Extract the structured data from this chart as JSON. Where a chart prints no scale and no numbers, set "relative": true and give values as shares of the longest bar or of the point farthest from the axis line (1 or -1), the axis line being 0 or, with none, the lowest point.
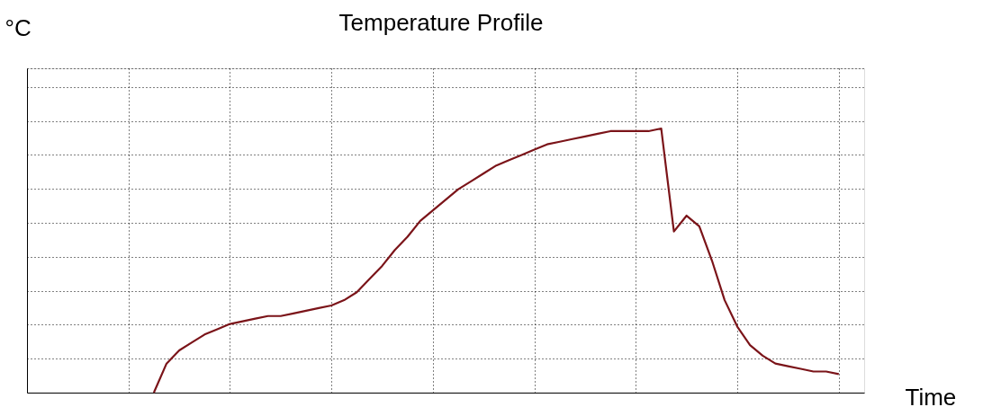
{
  "chart_data": {
    "type": "line",
    "title": "Temperature Profile",
    "xlabel": "Time",
    "ylabel": "°C",
    "relative": true,
    "grid": true,
    "legend": false,
    "marker": "none",
    "line_style": "solid",
    "categories": [
      null,
      null,
      null,
      null,
      null,
      null,
      null,
      null,
      null,
      null,
      null,
      null,
      null,
      null,
      null,
      null,
      null,
      null,
      null,
      null,
      null,
      null,
      null,
      null,
      null,
      null,
      null,
      null,
      null,
      null,
      null,
      null,
      null,
      null,
      null,
      null,
      null,
      null,
      null,
      null,
      null,
      null,
      null,
      null,
      null,
      null,
      null,
      null,
      null,
      null,
      null,
      null,
      null,
      null,
      null,
      null,
      null,
      null,
      null,
      null,
      null,
      null,
      null,
      null,
      null,
      null,
      null
    ],
    "series": [
      {
        "color": "#7b1419",
        "values": [
          null,
          null,
          null,
          null,
          null,
          null,
          null,
          null,
          null,
          null,
          0.0,
          0.11,
          0.16,
          0.19,
          0.22,
          0.24,
          0.26,
          0.27,
          0.28,
          0.29,
          0.29,
          0.3,
          0.31,
          0.32,
          0.33,
          0.35,
          0.38,
          0.43,
          0.48,
          0.54,
          0.59,
          0.65,
          0.69,
          0.73,
          0.77,
          0.8,
          0.83,
          0.86,
          0.88,
          0.9,
          0.92,
          0.94,
          0.95,
          0.96,
          0.97,
          0.98,
          0.99,
          0.99,
          0.99,
          0.99,
          1.0,
          0.61,
          0.67,
          0.63,
          0.5,
          0.35,
          0.25,
          0.18,
          0.14,
          0.11,
          0.1,
          0.09,
          0.08,
          0.08,
          0.07,
          null,
          null
        ]
      }
    ]
  }
}
